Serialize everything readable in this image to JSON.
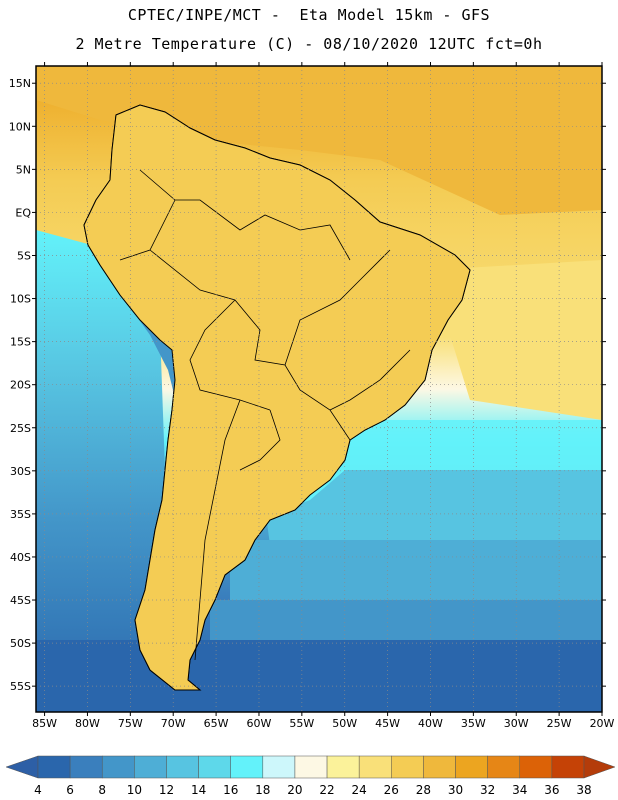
{
  "header": {
    "line1": "CPTEC/INPE/MCT -  Eta Model 15km - GFS",
    "line2": "2 Metre Temperature (C) - 08/10/2020 12UTC fct=0h"
  },
  "axes": {
    "lat_labels": [
      "15N",
      "10N",
      "5N",
      "EQ",
      "5S",
      "10S",
      "15S",
      "20S",
      "25S",
      "30S",
      "35S",
      "40S",
      "45S",
      "50S",
      "55S"
    ],
    "lat_values": [
      15,
      10,
      5,
      0,
      -5,
      -10,
      -15,
      -20,
      -25,
      -30,
      -35,
      -40,
      -45,
      -50,
      -55
    ],
    "lon_labels": [
      "85W",
      "80W",
      "75W",
      "70W",
      "65W",
      "60W",
      "55W",
      "50W",
      "45W",
      "40W",
      "35W",
      "30W",
      "25W",
      "20W"
    ],
    "lon_values": [
      -85,
      -80,
      -75,
      -70,
      -65,
      -60,
      -55,
      -50,
      -45,
      -40,
      -35,
      -30,
      -25,
      -20
    ],
    "lat_range": [
      -58,
      17
    ],
    "lon_range": [
      -86,
      -20
    ]
  },
  "legend": {
    "ticks": [
      "4",
      "6",
      "8",
      "10",
      "12",
      "14",
      "16",
      "18",
      "20",
      "22",
      "24",
      "26",
      "28",
      "30",
      "32",
      "34",
      "36",
      "38"
    ],
    "colors": [
      "#2a66ac",
      "#3a7fbd",
      "#4396c9",
      "#4eaed6",
      "#57c4e1",
      "#5ed8ea",
      "#63f2fa",
      "#cdf7fb",
      "#fdf8e4",
      "#fbf29a",
      "#f9e079",
      "#f4cc54",
      "#efb83c",
      "#eca520",
      "#e68616",
      "#dc6207",
      "#c54206"
    ],
    "end_low_color": "#2d5fa6",
    "end_high_color": "#b43c0a"
  },
  "colors": {
    "ocean_south": "#2a66ac",
    "ocean_mid": "#3a7fbd",
    "ocean_cool": "#4eaed6",
    "ocean_tropical": "#f4cc54",
    "land_warm": "#efb83c",
    "land_hot": "#e68616",
    "andes_cold": "#4396c9",
    "coast_line": "#000000"
  }
}
